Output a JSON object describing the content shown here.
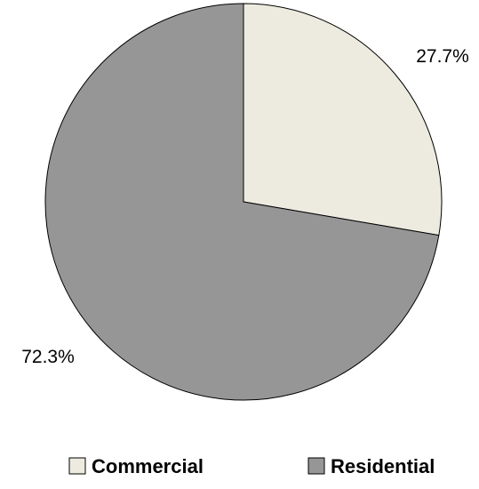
{
  "chart_data": {
    "type": "pie",
    "slices": [
      {
        "name": "Commercial",
        "value": 27.7,
        "label": "27.7%",
        "color": "#edebe0"
      },
      {
        "name": "Residential",
        "value": 72.3,
        "label": "72.3%",
        "color": "#969696"
      }
    ],
    "start": "12 o'clock",
    "direction": "clockwise",
    "outline_color": "#000000",
    "legend_placement": "bottom"
  }
}
